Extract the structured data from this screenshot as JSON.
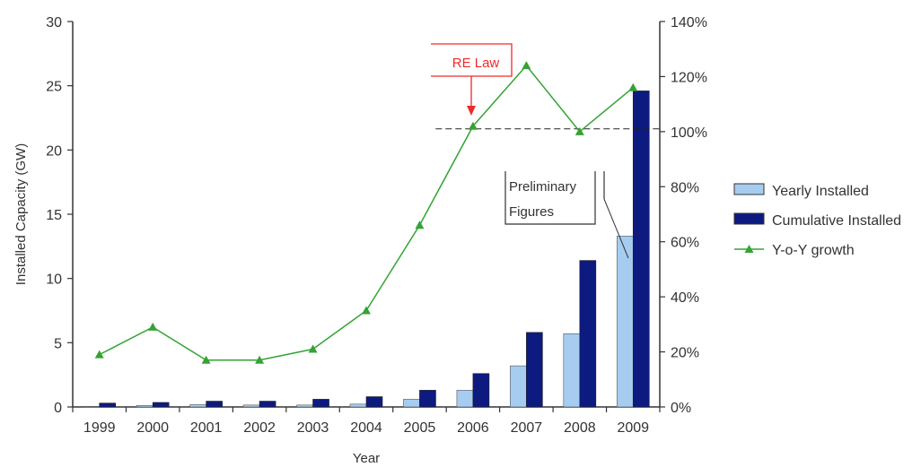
{
  "chart_data": {
    "type": "bar",
    "categories": [
      "1999",
      "2000",
      "2001",
      "2002",
      "2003",
      "2004",
      "2005",
      "2006",
      "2007",
      "2008",
      "2009"
    ],
    "series": [
      {
        "name": "Yearly Installed",
        "type": "bar",
        "axis": "left",
        "values": [
          0.05,
          0.12,
          0.18,
          0.15,
          0.15,
          0.22,
          0.6,
          1.3,
          3.2,
          5.7,
          13.3
        ]
      },
      {
        "name": "Cumulative Installed",
        "type": "bar",
        "axis": "left",
        "values": [
          0.3,
          0.35,
          0.45,
          0.45,
          0.6,
          0.8,
          1.3,
          2.6,
          5.8,
          11.4,
          24.6
        ]
      },
      {
        "name": "Y-o-Y growth",
        "type": "line",
        "axis": "right",
        "values": [
          19,
          29,
          17,
          17,
          21,
          35,
          66,
          102,
          124,
          100,
          116
        ]
      }
    ],
    "xlabel": "Year",
    "ylabel": "Installed Capacity (GW)",
    "ylim": [
      0,
      30
    ],
    "yticks": [
      0,
      5,
      10,
      15,
      20,
      25,
      30
    ],
    "y2lim": [
      0,
      140
    ],
    "y2ticks": [
      "0%",
      "20%",
      "40%",
      "60%",
      "80%",
      "100%",
      "120%",
      "140%"
    ],
    "reference_line": {
      "axis": "right",
      "value": 101,
      "from_category": "2006"
    },
    "annotations": {
      "re_law": "RE Law",
      "preliminary": [
        "Preliminary",
        "Figures"
      ]
    },
    "legend_position": "right",
    "colors": {
      "yearly": "#a6cdf0",
      "cumulative": "#0d1a80",
      "growth": "#34a334",
      "annotation": "#ef2a2a"
    },
    "grid": false
  }
}
